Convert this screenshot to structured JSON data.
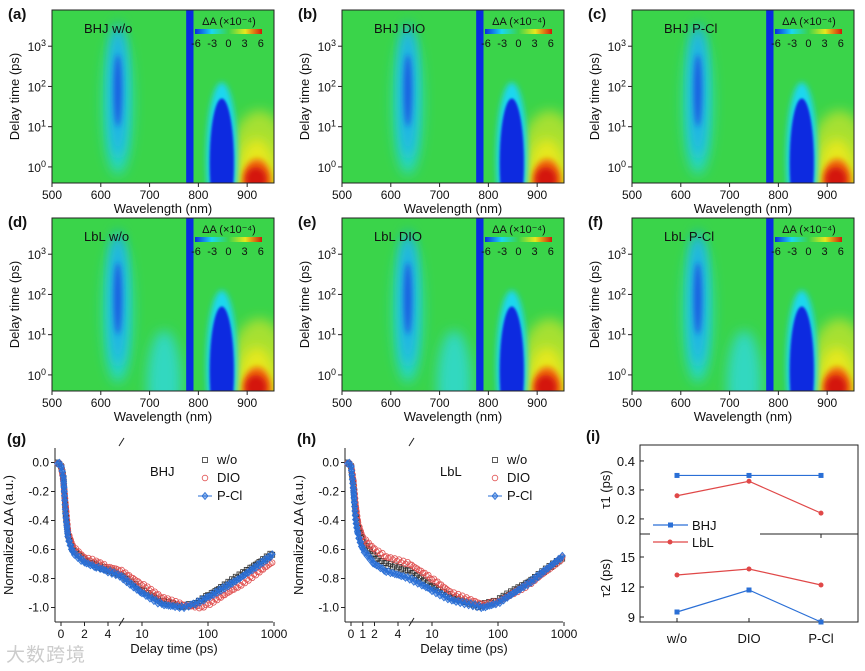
{
  "colors": {
    "blue": "#0a2be0",
    "cyan": "#1ad7f0",
    "green": "#3ad44a",
    "yellow": "#e6e81e",
    "red": "#d4180a",
    "series_black": "#333333",
    "series_red": "#e05050",
    "series_blue": "#2a6fd6",
    "bhj_line": "#2a6fd6",
    "lbl_line": "#e04848"
  },
  "watermark": "大数跨境",
  "chart_data": [
    {
      "type": "heatmap",
      "panel": "(a)",
      "label": "BHJ  w/o",
      "xlabel": "Wavelength (nm)",
      "ylabel": "Delay time (ps)",
      "xlim": [
        500,
        955
      ],
      "ylim_log10": [
        -0.4,
        3.9
      ],
      "xticks": [
        "500",
        "600",
        "700",
        "800",
        "900"
      ],
      "yticks": [
        "10^0",
        "10^1",
        "10^2",
        "10^3"
      ],
      "colorbar": {
        "title": "ΔA (×10⁻⁴)",
        "ticks": [
          "-6",
          "-3",
          "0",
          "3",
          "6"
        ],
        "range": [
          -6,
          6
        ]
      },
      "lbl_extra": false
    },
    {
      "type": "heatmap",
      "panel": "(b)",
      "label": "BHJ  DIO",
      "xlabel": "Wavelength (nm)",
      "ylabel": "Delay time (ps)",
      "xlim": [
        500,
        955
      ],
      "ylim_log10": [
        -0.4,
        3.9
      ],
      "xticks": [
        "500",
        "600",
        "700",
        "800",
        "900"
      ],
      "yticks": [
        "10^0",
        "10^1",
        "10^2",
        "10^3"
      ],
      "colorbar": {
        "title": "ΔA (×10⁻⁴)",
        "ticks": [
          "-6",
          "-3",
          "0",
          "3",
          "6"
        ],
        "range": [
          -6,
          6
        ]
      },
      "lbl_extra": false
    },
    {
      "type": "heatmap",
      "panel": "(c)",
      "label": "BHJ  P-Cl",
      "xlabel": "Wavelength (nm)",
      "ylabel": "Delay time (ps)",
      "xlim": [
        500,
        955
      ],
      "ylim_log10": [
        -0.4,
        3.9
      ],
      "xticks": [
        "500",
        "600",
        "700",
        "800",
        "900"
      ],
      "yticks": [
        "10^0",
        "10^1",
        "10^2",
        "10^3"
      ],
      "colorbar": {
        "title": "ΔA (×10⁻⁴)",
        "ticks": [
          "-6",
          "-3",
          "0",
          "3",
          "6"
        ],
        "range": [
          -6,
          6
        ]
      },
      "lbl_extra": false
    },
    {
      "type": "heatmap",
      "panel": "(d)",
      "label": "LbL  w/o",
      "xlabel": "Wavelength (nm)",
      "ylabel": "Delay time (ps)",
      "xlim": [
        500,
        955
      ],
      "ylim_log10": [
        -0.4,
        3.9
      ],
      "xticks": [
        "500",
        "600",
        "700",
        "800",
        "900"
      ],
      "yticks": [
        "10^0",
        "10^1",
        "10^2",
        "10^3"
      ],
      "colorbar": {
        "title": "ΔA (×10⁻⁴)",
        "ticks": [
          "-6",
          "-3",
          "0",
          "3",
          "6"
        ],
        "range": [
          -6,
          6
        ]
      },
      "lbl_extra": true
    },
    {
      "type": "heatmap",
      "panel": "(e)",
      "label": "LbL  DIO",
      "xlabel": "Wavelength (nm)",
      "ylabel": "Delay time (ps)",
      "xlim": [
        500,
        955
      ],
      "ylim_log10": [
        -0.4,
        3.9
      ],
      "xticks": [
        "500",
        "600",
        "700",
        "800",
        "900"
      ],
      "yticks": [
        "10^0",
        "10^1",
        "10^2",
        "10^3"
      ],
      "colorbar": {
        "title": "ΔA (×10⁻⁴)",
        "ticks": [
          "-6",
          "-3",
          "0",
          "3",
          "6"
        ],
        "range": [
          -6,
          6
        ]
      },
      "lbl_extra": true
    },
    {
      "type": "heatmap",
      "panel": "(f)",
      "label": "LbL  P-Cl",
      "xlabel": "Wavelength (nm)",
      "ylabel": "Delay time (ps)",
      "xlim": [
        500,
        955
      ],
      "ylim_log10": [
        -0.4,
        3.9
      ],
      "xticks": [
        "500",
        "600",
        "700",
        "800",
        "900"
      ],
      "yticks": [
        "10^0",
        "10^1",
        "10^2",
        "10^3"
      ],
      "colorbar": {
        "title": "ΔA (×10⁻⁴)",
        "ticks": [
          "-6",
          "-3",
          "0",
          "3",
          "6"
        ],
        "range": [
          -6,
          6
        ]
      },
      "lbl_extra": true
    },
    {
      "type": "scatter",
      "panel": "(g)",
      "label": "BHJ",
      "xlabel": "Delay time (ps)",
      "ylabel": "Normalized ΔA (a.u.)",
      "x_scale": "linear -0.5..5, log 5..1000 (axis break)",
      "ylim": [
        -1.1,
        0.1
      ],
      "xticks": [
        "0",
        "2",
        "4",
        "10",
        "100",
        "1000"
      ],
      "yticks": [
        "0.0",
        "-0.2",
        "-0.4",
        "-0.6",
        "-0.8",
        "-1.0"
      ],
      "legend": "top-right",
      "series": [
        {
          "name": "w/o",
          "marker": "square",
          "x": [
            -0.3,
            0,
            0.2,
            0.4,
            0.6,
            1,
            2,
            3,
            4,
            5,
            10,
            20,
            40,
            60,
            100,
            300,
            1000
          ],
          "y": [
            0,
            -0.02,
            -0.1,
            -0.35,
            -0.5,
            -0.6,
            -0.67,
            -0.71,
            -0.74,
            -0.77,
            -0.88,
            -0.96,
            -0.99,
            -0.98,
            -0.92,
            -0.78,
            -0.62
          ]
        },
        {
          "name": "DIO",
          "marker": "circle",
          "x": [
            -0.3,
            0,
            0.2,
            0.4,
            0.6,
            1,
            2,
            3,
            4,
            5,
            10,
            20,
            40,
            80,
            100,
            300,
            1000
          ],
          "y": [
            0,
            -0.02,
            -0.12,
            -0.3,
            -0.48,
            -0.58,
            -0.66,
            -0.68,
            -0.72,
            -0.74,
            -0.84,
            -0.93,
            -0.98,
            -1.0,
            -0.98,
            -0.85,
            -0.68
          ]
        },
        {
          "name": "P-Cl",
          "marker": "diamond",
          "x": [
            -0.3,
            0,
            0.2,
            0.4,
            0.6,
            1,
            2,
            3,
            4,
            5,
            10,
            20,
            40,
            60,
            100,
            300,
            1000
          ],
          "y": [
            0,
            -0.02,
            -0.1,
            -0.36,
            -0.52,
            -0.62,
            -0.69,
            -0.72,
            -0.75,
            -0.78,
            -0.9,
            -0.98,
            -1.0,
            -0.98,
            -0.93,
            -0.8,
            -0.63
          ]
        }
      ]
    },
    {
      "type": "scatter",
      "panel": "(h)",
      "label": "LbL",
      "xlabel": "Delay time (ps)",
      "ylabel": "Normalized ΔA (a.u.)",
      "x_scale": "linear -0.5..5, log 5..1000 (axis break)",
      "ylim": [
        -1.1,
        0.1
      ],
      "xticks": [
        "0",
        "1",
        "2",
        "4",
        "10",
        "100",
        "1000"
      ],
      "yticks": [
        "0.0",
        "-0.2",
        "-0.4",
        "-0.6",
        "-0.8",
        "-1.0"
      ],
      "legend": "top-right",
      "series": [
        {
          "name": "w/o",
          "marker": "square",
          "x": [
            -0.3,
            0,
            0.2,
            0.4,
            0.6,
            1,
            2,
            3,
            5,
            10,
            20,
            50,
            100,
            300,
            1000
          ],
          "y": [
            0,
            -0.02,
            -0.15,
            -0.35,
            -0.45,
            -0.55,
            -0.65,
            -0.7,
            -0.75,
            -0.85,
            -0.93,
            -0.99,
            -0.95,
            -0.82,
            -0.65
          ]
        },
        {
          "name": "DIO",
          "marker": "circle",
          "x": [
            -0.3,
            0,
            0.2,
            0.4,
            0.6,
            1,
            2,
            3,
            5,
            10,
            20,
            60,
            100,
            300,
            1000
          ],
          "y": [
            0,
            -0.02,
            -0.12,
            -0.3,
            -0.42,
            -0.52,
            -0.6,
            -0.65,
            -0.7,
            -0.8,
            -0.9,
            -0.98,
            -0.96,
            -0.84,
            -0.65
          ]
        },
        {
          "name": "P-Cl",
          "marker": "diamond",
          "x": [
            -0.3,
            0,
            0.2,
            0.4,
            0.6,
            1,
            2,
            3,
            5,
            10,
            20,
            60,
            100,
            300,
            1000
          ],
          "y": [
            0,
            -0.02,
            -0.18,
            -0.4,
            -0.5,
            -0.6,
            -0.7,
            -0.75,
            -0.8,
            -0.88,
            -0.95,
            -1.0,
            -0.97,
            -0.83,
            -0.64
          ]
        }
      ]
    },
    {
      "type": "line",
      "panel": "(i)",
      "categories": [
        "w/o",
        "DIO",
        "P-Cl"
      ],
      "legend": "middle-left",
      "top": {
        "ylabel": "τ1 (ps)",
        "ylim": [
          0.148,
          0.455
        ],
        "yticks": [
          "0.2",
          "0.3",
          "0.4"
        ],
        "series": [
          {
            "name": "BHJ",
            "values": [
              0.35,
              0.35,
              0.35
            ]
          },
          {
            "name": "LbL",
            "values": [
              0.28,
              0.33,
              0.22
            ]
          }
        ]
      },
      "bottom": {
        "ylabel": "τ2 (ps)",
        "ylim": [
          8.5,
          17.3
        ],
        "yticks": [
          "9",
          "12",
          "15"
        ],
        "series": [
          {
            "name": "BHJ",
            "values": [
              9.5,
              11.7,
              8.5
            ]
          },
          {
            "name": "LbL",
            "values": [
              13.2,
              13.8,
              12.2
            ]
          }
        ]
      }
    }
  ]
}
